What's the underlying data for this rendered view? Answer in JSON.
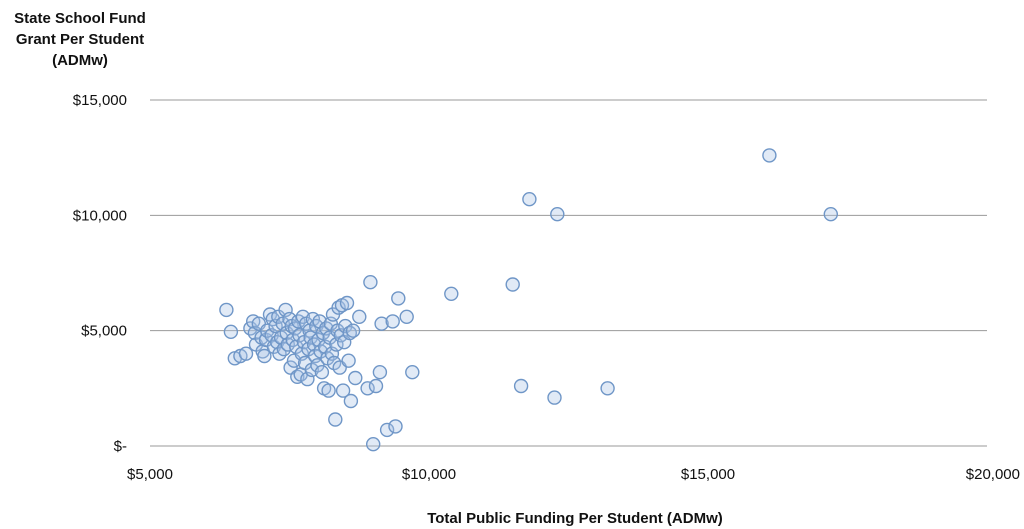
{
  "chart_data": {
    "type": "scatter",
    "ylabel_lines": [
      "State School Fund",
      "Grant Per Student",
      "(ADMw)"
    ],
    "xlabel": "Total Public Funding Per Student (ADMw)",
    "xlim": [
      5000,
      20000
    ],
    "ylim": [
      0,
      15000
    ],
    "x_ticks": [
      {
        "value": 5000,
        "label": "$5,000"
      },
      {
        "value": 10000,
        "label": "$10,000"
      },
      {
        "value": 15000,
        "label": "$15,000"
      },
      {
        "value": 20000,
        "label": "$20,000"
      }
    ],
    "y_ticks": [
      {
        "value": 0,
        "label": "$-"
      },
      {
        "value": 5000,
        "label": "$5,000"
      },
      {
        "value": 10000,
        "label": "$10,000"
      },
      {
        "value": 15000,
        "label": "$15,000"
      }
    ],
    "grid": "horizontal",
    "marker_color": "#6f96c7",
    "points": [
      [
        6370,
        5900
      ],
      [
        6450,
        4950
      ],
      [
        6520,
        3800
      ],
      [
        6620,
        3900
      ],
      [
        6720,
        4000
      ],
      [
        6800,
        5100
      ],
      [
        6850,
        5400
      ],
      [
        6880,
        4900
      ],
      [
        6900,
        4400
      ],
      [
        6950,
        5300
      ],
      [
        7000,
        4700
      ],
      [
        7020,
        4100
      ],
      [
        7050,
        3900
      ],
      [
        7080,
        4600
      ],
      [
        7100,
        5000
      ],
      [
        7150,
        5700
      ],
      [
        7180,
        4800
      ],
      [
        7200,
        5500
      ],
      [
        7220,
        4300
      ],
      [
        7250,
        5200
      ],
      [
        7280,
        4500
      ],
      [
        7300,
        5600
      ],
      [
        7320,
        4000
      ],
      [
        7350,
        4700
      ],
      [
        7380,
        5300
      ],
      [
        7400,
        4200
      ],
      [
        7430,
        5900
      ],
      [
        7450,
        4900
      ],
      [
        7470,
        4400
      ],
      [
        7500,
        5500
      ],
      [
        7520,
        3400
      ],
      [
        7540,
        5200
      ],
      [
        7560,
        4600
      ],
      [
        7580,
        3700
      ],
      [
        7600,
        5100
      ],
      [
        7620,
        4300
      ],
      [
        7640,
        3000
      ],
      [
        7660,
        5400
      ],
      [
        7680,
        4800
      ],
      [
        7700,
        3100
      ],
      [
        7720,
        4000
      ],
      [
        7740,
        5600
      ],
      [
        7760,
        4500
      ],
      [
        7780,
        3600
      ],
      [
        7800,
        5300
      ],
      [
        7820,
        2900
      ],
      [
        7840,
        4200
      ],
      [
        7860,
        5000
      ],
      [
        7880,
        4700
      ],
      [
        7900,
        3300
      ],
      [
        7920,
        5500
      ],
      [
        7940,
        4400
      ],
      [
        7960,
        3900
      ],
      [
        7980,
        5200
      ],
      [
        8000,
        3500
      ],
      [
        8020,
        4600
      ],
      [
        8040,
        5400
      ],
      [
        8060,
        4100
      ],
      [
        8080,
        3200
      ],
      [
        8100,
        4900
      ],
      [
        8120,
        2500
      ],
      [
        8140,
        4300
      ],
      [
        8160,
        5100
      ],
      [
        8180,
        3800
      ],
      [
        8200,
        2400
      ],
      [
        8220,
        4700
      ],
      [
        8240,
        5300
      ],
      [
        8260,
        4000
      ],
      [
        8280,
        5700
      ],
      [
        8300,
        3600
      ],
      [
        8320,
        1150
      ],
      [
        8340,
        4400
      ],
      [
        8360,
        5000
      ],
      [
        8380,
        6000
      ],
      [
        8400,
        3400
      ],
      [
        8420,
        4800
      ],
      [
        8440,
        6100
      ],
      [
        8460,
        2400
      ],
      [
        8480,
        4500
      ],
      [
        8500,
        5200
      ],
      [
        8530,
        6200
      ],
      [
        8560,
        3700
      ],
      [
        8580,
        4900
      ],
      [
        8600,
        1950
      ],
      [
        8640,
        5000
      ],
      [
        8680,
        2950
      ],
      [
        8750,
        5600
      ],
      [
        8900,
        2500
      ],
      [
        8950,
        7100
      ],
      [
        9000,
        80
      ],
      [
        9050,
        2600
      ],
      [
        9120,
        3200
      ],
      [
        9150,
        5300
      ],
      [
        9250,
        700
      ],
      [
        9350,
        5400
      ],
      [
        9400,
        850
      ],
      [
        9450,
        6400
      ],
      [
        9600,
        5600
      ],
      [
        9700,
        3200
      ],
      [
        10400,
        6600
      ],
      [
        11500,
        7000
      ],
      [
        11650,
        2600
      ],
      [
        11800,
        10700
      ],
      [
        12250,
        2100
      ],
      [
        12300,
        10050
      ],
      [
        13200,
        2500
      ],
      [
        16100,
        12600
      ],
      [
        17200,
        10050
      ]
    ]
  }
}
